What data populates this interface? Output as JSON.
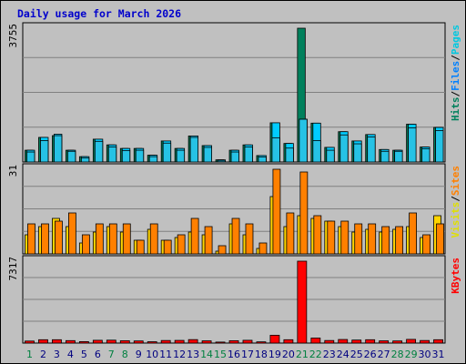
{
  "title": "Daily usage for March 2026",
  "colors": {
    "hits": "#00805c",
    "files": "#00ccff",
    "pages": "#00b7e0",
    "visits": "#ffd400",
    "sites": "#ff8000",
    "kbytes": "#ff0000",
    "weekend_day": "#008040",
    "weekday_day": "#000080"
  },
  "chart_data": [
    {
      "type": "bar",
      "name": "hits-files-pages",
      "ymax_label": "3755",
      "ylim": [
        0,
        3755
      ],
      "legend": [
        {
          "text": "Hits",
          "color": "#00805c"
        },
        {
          "text": "/",
          "color": "#000000"
        },
        {
          "text": "Files",
          "color": "#0080ff"
        },
        {
          "text": "/",
          "color": "#000000"
        },
        {
          "text": "Pages",
          "color": "#00c8e0"
        }
      ],
      "series": [
        {
          "name": "Hits",
          "values": [
            330,
            690,
            740,
            330,
            150,
            640,
            480,
            380,
            380,
            190,
            590,
            380,
            730,
            460,
            60,
            330,
            480,
            180,
            1100,
            520,
            3755,
            1090,
            410,
            850,
            590,
            770,
            350,
            330,
            1060,
            420,
            970
          ]
        },
        {
          "name": "Files",
          "values": [
            330,
            690,
            780,
            330,
            150,
            640,
            480,
            380,
            380,
            190,
            590,
            380,
            730,
            460,
            60,
            330,
            480,
            180,
            1100,
            520,
            1200,
            1090,
            410,
            850,
            590,
            770,
            350,
            330,
            1060,
            420,
            970
          ]
        },
        {
          "name": "Pages",
          "values": [
            280,
            600,
            740,
            300,
            110,
            580,
            420,
            320,
            330,
            150,
            530,
            330,
            690,
            410,
            30,
            280,
            420,
            140,
            680,
            390,
            1200,
            600,
            330,
            760,
            510,
            700,
            300,
            300,
            960,
            370,
            880
          ]
        }
      ]
    },
    {
      "type": "bar",
      "name": "visits-sites",
      "ymax_label": "31",
      "ylim": [
        0,
        31
      ],
      "legend": [
        {
          "text": "Visits",
          "color": "#e0e000"
        },
        {
          "text": "/",
          "color": "#000000"
        },
        {
          "text": "Sites",
          "color": "#ff8000"
        }
      ],
      "series": [
        {
          "name": "Visits",
          "values": [
            7,
            10,
            13,
            10,
            4,
            8,
            10,
            8,
            5,
            9,
            5,
            6,
            8,
            7,
            1,
            11,
            7,
            2,
            21,
            10,
            14,
            13,
            12,
            10,
            8,
            9,
            8,
            9,
            10,
            6,
            14
          ]
        },
        {
          "name": "Sites",
          "values": [
            11,
            11,
            12,
            15,
            7,
            11,
            11,
            11,
            5,
            11,
            5,
            7,
            13,
            10,
            3,
            13,
            11,
            4,
            31,
            15,
            30,
            14,
            12,
            12,
            11,
            11,
            10,
            10,
            15,
            7,
            11
          ]
        }
      ]
    },
    {
      "type": "bar",
      "name": "kbytes",
      "ymax_label": "7317",
      "ylim": [
        0,
        7317
      ],
      "legend": [
        {
          "text": "KBytes",
          "color": "#ff0000"
        }
      ],
      "series": [
        {
          "name": "KBytes",
          "values": [
            180,
            300,
            300,
            220,
            130,
            250,
            260,
            210,
            190,
            120,
            230,
            240,
            310,
            200,
            90,
            210,
            250,
            110,
            700,
            300,
            7317,
            450,
            230,
            320,
            270,
            300,
            200,
            190,
            330,
            230,
            300
          ]
        }
      ]
    }
  ],
  "days": [
    {
      "label": "1",
      "weekend": true
    },
    {
      "label": "2",
      "weekend": false
    },
    {
      "label": "3",
      "weekend": false
    },
    {
      "label": "4",
      "weekend": false
    },
    {
      "label": "5",
      "weekend": false
    },
    {
      "label": "6",
      "weekend": false
    },
    {
      "label": "7",
      "weekend": true
    },
    {
      "label": "8",
      "weekend": true
    },
    {
      "label": "9",
      "weekend": false
    },
    {
      "label": "10",
      "weekend": false
    },
    {
      "label": "11",
      "weekend": false
    },
    {
      "label": "12",
      "weekend": false
    },
    {
      "label": "13",
      "weekend": false
    },
    {
      "label": "14",
      "weekend": true
    },
    {
      "label": "15",
      "weekend": true
    },
    {
      "label": "16",
      "weekend": false
    },
    {
      "label": "17",
      "weekend": false
    },
    {
      "label": "18",
      "weekend": false
    },
    {
      "label": "19",
      "weekend": false
    },
    {
      "label": "20",
      "weekend": false
    },
    {
      "label": "21",
      "weekend": true
    },
    {
      "label": "22",
      "weekend": true
    },
    {
      "label": "23",
      "weekend": false
    },
    {
      "label": "24",
      "weekend": false
    },
    {
      "label": "25",
      "weekend": false
    },
    {
      "label": "26",
      "weekend": false
    },
    {
      "label": "27",
      "weekend": false
    },
    {
      "label": "28",
      "weekend": true
    },
    {
      "label": "29",
      "weekend": true
    },
    {
      "label": "30",
      "weekend": false
    },
    {
      "label": "31",
      "weekend": false
    }
  ]
}
